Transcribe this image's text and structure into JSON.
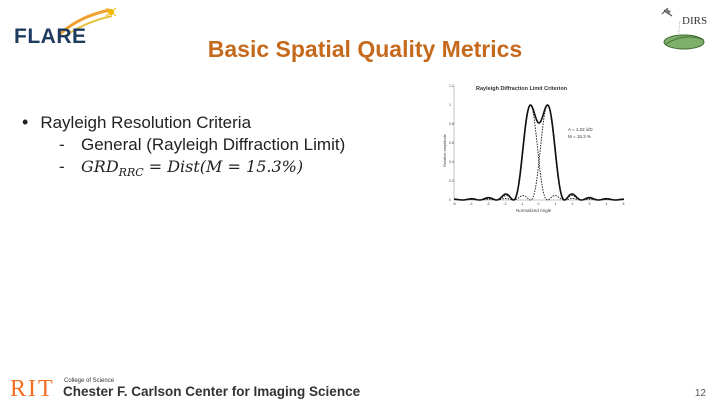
{
  "header": {
    "logo_text": "FLARE",
    "title": "Basic Spatial Quality Metrics",
    "right_logo_text": "DIRS"
  },
  "content": {
    "bullet": "Rayleigh Resolution Criteria",
    "sub1": "General (Rayleigh Diffraction Limit)",
    "sub2_lhs": "GRD",
    "sub2_sub": "RRC",
    "sub2_mid": " = Dist(M = 15.3%)"
  },
  "chart": {
    "title": "Rayleigh Diffraction Limit Criterion",
    "xlabel": "Normalized Angle",
    "ylabel": "Relative amplitude",
    "annotation1": "A = 1.22 λ/D",
    "annotation2": "M = 15.3 %",
    "yticks": [
      "0",
      "0.2",
      "0.4",
      "0.6",
      "0.8",
      "1",
      "1.2"
    ],
    "xticks": [
      "-5",
      "-4",
      "-3",
      "-2",
      "-1",
      "0",
      "1",
      "2",
      "3",
      "4",
      "5"
    ]
  },
  "footer": {
    "rit": "RIT",
    "college": "College of Science",
    "center": "Chester F. Carlson Center for Imaging Science",
    "page_number": "12"
  }
}
